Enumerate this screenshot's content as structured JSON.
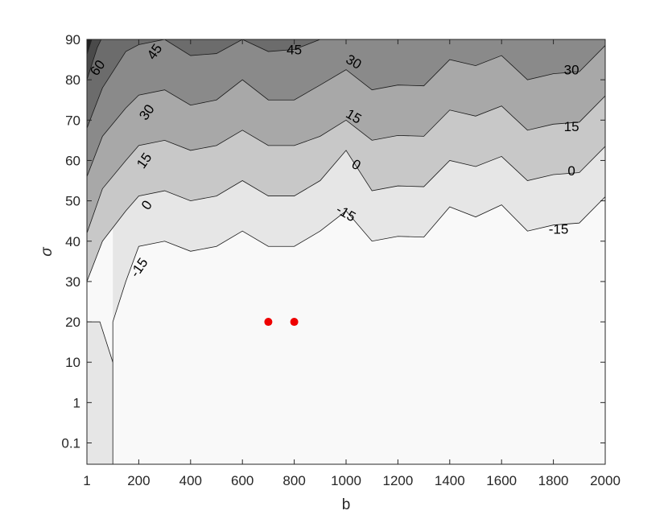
{
  "chart_data": {
    "type": "contour",
    "xlabel": "b",
    "ylabel": "σ",
    "x_ticks": [
      "1",
      "200",
      "400",
      "600",
      "800",
      "1000",
      "1200",
      "1400",
      "1600",
      "1800",
      "2000"
    ],
    "y_ticks": [
      "0.1",
      "1",
      "10",
      "20",
      "30",
      "40",
      "50",
      "60",
      "70",
      "80",
      "90"
    ],
    "xlim": [
      1,
      2000
    ],
    "ylim_tick_range": [
      "0.1",
      "90"
    ],
    "levels": [
      -15,
      0,
      15,
      30,
      45,
      60
    ],
    "colors": [
      "#f9f9f9",
      "#e6e6e6",
      "#c8c8c8",
      "#a8a8a8",
      "#8a8a8a",
      "#6c6c6c",
      "#4a4a4a",
      "#222222"
    ],
    "contours": [
      {
        "level": -15,
        "label": "-15",
        "points": [
          [
            1,
            20
          ],
          [
            50,
            20
          ],
          [
            100,
            10
          ],
          [
            100,
            0.1
          ]
        ]
      },
      {
        "level": -15,
        "label": "-15",
        "points": [
          [
            100,
            10
          ],
          [
            100,
            20
          ],
          [
            150,
            30
          ],
          [
            200,
            38.7
          ],
          [
            300,
            40
          ],
          [
            400,
            37.5
          ],
          [
            500,
            38.7
          ],
          [
            600,
            42.5
          ],
          [
            700,
            38.7
          ],
          [
            800,
            38.7
          ],
          [
            900,
            42.5
          ],
          [
            1000,
            47.5
          ],
          [
            1100,
            40
          ],
          [
            1200,
            41.2
          ],
          [
            1300,
            41
          ],
          [
            1400,
            48.5
          ],
          [
            1500,
            46
          ],
          [
            1600,
            49
          ],
          [
            1700,
            42.5
          ],
          [
            1800,
            44
          ],
          [
            1900,
            44.5
          ],
          [
            2000,
            51
          ]
        ]
      },
      {
        "level": 0,
        "label": "0",
        "points": [
          [
            1,
            30
          ],
          [
            60,
            40
          ],
          [
            150,
            47.5
          ],
          [
            200,
            51.2
          ],
          [
            300,
            52.5
          ],
          [
            400,
            50
          ],
          [
            500,
            51.2
          ],
          [
            600,
            55
          ],
          [
            700,
            51.2
          ],
          [
            800,
            51.2
          ],
          [
            900,
            55
          ],
          [
            1000,
            62.5
          ],
          [
            1100,
            52.5
          ],
          [
            1200,
            53.7
          ],
          [
            1300,
            53.5
          ],
          [
            1400,
            60
          ],
          [
            1500,
            58.5
          ],
          [
            1600,
            61
          ],
          [
            1700,
            55
          ],
          [
            1800,
            56.5
          ],
          [
            1900,
            57
          ],
          [
            2000,
            63.5
          ]
        ]
      },
      {
        "level": 15,
        "label": "15",
        "points": [
          [
            1,
            42
          ],
          [
            60,
            53
          ],
          [
            150,
            60
          ],
          [
            200,
            63.7
          ],
          [
            300,
            65
          ],
          [
            400,
            62.5
          ],
          [
            500,
            63.7
          ],
          [
            600,
            67.5
          ],
          [
            700,
            63.7
          ],
          [
            800,
            63.7
          ],
          [
            900,
            66
          ],
          [
            1000,
            70
          ],
          [
            1100,
            65
          ],
          [
            1200,
            66.2
          ],
          [
            1300,
            66
          ],
          [
            1400,
            72.5
          ],
          [
            1500,
            71
          ],
          [
            1600,
            73.5
          ],
          [
            1700,
            67.5
          ],
          [
            1800,
            69
          ],
          [
            1900,
            69.5
          ],
          [
            2000,
            76
          ]
        ]
      },
      {
        "level": 30,
        "label": "30",
        "points": [
          [
            1,
            56
          ],
          [
            60,
            66
          ],
          [
            150,
            73
          ],
          [
            200,
            76.2
          ],
          [
            300,
            77.5
          ],
          [
            400,
            73.7
          ],
          [
            500,
            75
          ],
          [
            600,
            80
          ],
          [
            700,
            75
          ],
          [
            800,
            75
          ],
          [
            900,
            78.7
          ],
          [
            1000,
            82.5
          ],
          [
            1100,
            77.5
          ],
          [
            1200,
            78.7
          ],
          [
            1300,
            78.5
          ],
          [
            1400,
            85
          ],
          [
            1500,
            83.5
          ],
          [
            1600,
            86
          ],
          [
            1700,
            80
          ],
          [
            1800,
            81.5
          ],
          [
            1900,
            82
          ],
          [
            2000,
            88.5
          ]
        ]
      },
      {
        "level": 45,
        "label": "45",
        "points": [
          [
            1,
            68
          ],
          [
            60,
            78
          ],
          [
            150,
            87
          ],
          [
            200,
            88.7
          ],
          [
            300,
            90
          ],
          [
            400,
            86
          ],
          [
            500,
            86.5
          ],
          [
            600,
            90
          ],
          [
            700,
            87
          ],
          [
            800,
            87.5
          ],
          [
            900,
            90
          ]
        ]
      },
      {
        "level": 60,
        "label": "60",
        "points": [
          [
            1,
            80
          ],
          [
            40,
            88
          ],
          [
            55,
            90
          ]
        ]
      }
    ],
    "contour_labels": [
      {
        "text": "60",
        "b": 40,
        "s": 83
      },
      {
        "text": "45",
        "b": 260,
        "s": 87
      },
      {
        "text": "45",
        "b": 800,
        "s": 87.5
      },
      {
        "text": "30",
        "b": 230,
        "s": 72
      },
      {
        "text": "30",
        "b": 1030,
        "s": 84.5
      },
      {
        "text": "30",
        "b": 1870,
        "s": 82.5
      },
      {
        "text": "15",
        "b": 220,
        "s": 60
      },
      {
        "text": "15",
        "b": 1030,
        "s": 71
      },
      {
        "text": "15",
        "b": 1870,
        "s": 68.5
      },
      {
        "text": "0",
        "b": 230,
        "s": 49
      },
      {
        "text": "0",
        "b": 1040,
        "s": 59
      },
      {
        "text": "0",
        "b": 1870,
        "s": 57.5
      },
      {
        "text": "-15",
        "b": 200,
        "s": 33.5
      },
      {
        "text": "-15",
        "b": 1000,
        "s": 47
      },
      {
        "text": "-15",
        "b": 1820,
        "s": 43
      }
    ],
    "points": [
      {
        "b": 700,
        "s": 20,
        "color": "#ee0000"
      },
      {
        "b": 800,
        "s": 20,
        "color": "#ee0000"
      }
    ]
  }
}
